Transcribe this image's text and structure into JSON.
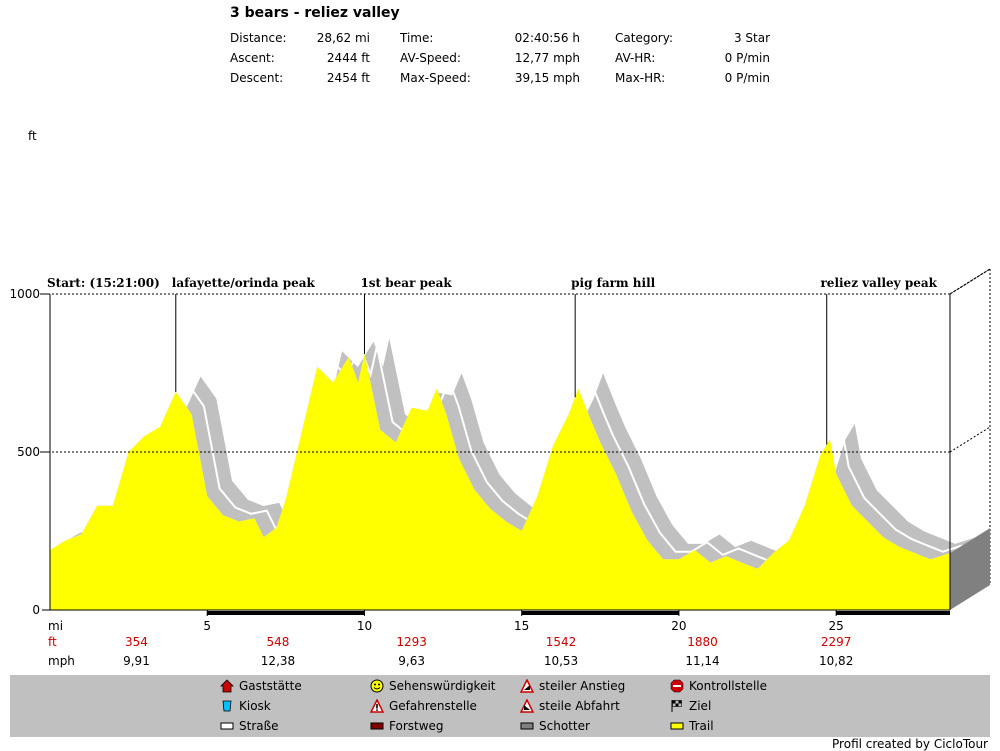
{
  "title": "3 bears - reliez valley",
  "stats": [
    {
      "label": "Distance:",
      "value": "28,62 mi"
    },
    {
      "label": "Ascent:",
      "value": "2444 ft"
    },
    {
      "label": "Descent:",
      "value": "2454 ft"
    },
    {
      "label": "Time:",
      "value": "02:40:56 h"
    },
    {
      "label": "AV-Speed:",
      "value": "12,77 mph"
    },
    {
      "label": "Max-Speed:",
      "value": "39,15 mph"
    },
    {
      "label": "Category:",
      "value": "3 Star"
    },
    {
      "label": "AV-HR:",
      "value": "0 P/min"
    },
    {
      "label": "Max-HR:",
      "value": "0 P/min"
    }
  ],
  "chart_data": {
    "type": "area",
    "ylabel": "ft",
    "xlabel": "mi",
    "xlim": [
      0,
      28.62
    ],
    "ylim": [
      0,
      1000
    ],
    "y_ticks": [
      "0",
      "500",
      "1000"
    ],
    "x_ticks": [
      "5",
      "10",
      "15",
      "20",
      "25"
    ],
    "grid": "dotted lines at 500 and 1000",
    "start_label": "Start: (15:21:00)",
    "waypoints": [
      {
        "name": "lafayette/orinda peak",
        "x": 4.0
      },
      {
        "name": "1st bear peak",
        "x": 10.0
      },
      {
        "name": "pig farm hill",
        "x": 16.7
      },
      {
        "name": "reliez valley peak",
        "x": 24.7
      }
    ],
    "elevation_profile": {
      "x": [
        0,
        0.5,
        1.0,
        1.5,
        2.0,
        2.5,
        3.0,
        3.5,
        4.0,
        4.5,
        5.0,
        5.5,
        6.0,
        6.5,
        6.8,
        7.2,
        7.5,
        8.0,
        8.5,
        9.0,
        9.5,
        9.8,
        10.0,
        10.5,
        11.0,
        11.5,
        12.0,
        12.3,
        12.6,
        13.0,
        13.5,
        14.0,
        14.5,
        15.0,
        15.5,
        16.0,
        16.5,
        16.8,
        17.2,
        17.5,
        18.0,
        18.5,
        19.0,
        19.5,
        20.0,
        20.5,
        21.0,
        21.5,
        22.0,
        22.5,
        23.0,
        23.5,
        24.0,
        24.5,
        24.8,
        25.0,
        25.5,
        26.0,
        26.5,
        27.0,
        27.5,
        28.0,
        28.62
      ],
      "y": [
        190,
        220,
        240,
        330,
        330,
        500,
        550,
        580,
        690,
        620,
        360,
        300,
        280,
        290,
        230,
        260,
        350,
        560,
        770,
        720,
        800,
        720,
        810,
        570,
        530,
        640,
        630,
        700,
        620,
        480,
        380,
        320,
        280,
        250,
        360,
        520,
        620,
        700,
        600,
        530,
        430,
        310,
        220,
        160,
        160,
        190,
        150,
        170,
        150,
        130,
        180,
        220,
        330,
        490,
        540,
        430,
        330,
        280,
        230,
        200,
        180,
        160,
        180
      ]
    },
    "legend_row": {
      "ft": [
        "354",
        "548",
        "1293",
        "1542",
        "1880",
        "2297"
      ],
      "mph": [
        "9,91",
        "12,38",
        "9,63",
        "10,53",
        "11,14",
        "10,82"
      ]
    },
    "colors": {
      "fill": "#ffff00",
      "shadow": "#c0c0c0",
      "background": "#ffffff",
      "side": "#808080"
    }
  },
  "legend": {
    "items": [
      {
        "label": "Gaststätte",
        "icon": "house-icon"
      },
      {
        "label": "Sehenswürdigkeit",
        "icon": "smiley-icon"
      },
      {
        "label": "steiler Anstieg",
        "icon": "warning-icon"
      },
      {
        "label": "Kontrollstelle",
        "icon": "stop-icon"
      },
      {
        "label": "Kiosk",
        "icon": "kiosk-icon"
      },
      {
        "label": "Gefahrenstelle",
        "icon": "hazard-icon"
      },
      {
        "label": "steile Abfahrt",
        "icon": "descent-icon"
      },
      {
        "label": "Ziel",
        "icon": "flag-icon"
      },
      {
        "label": "Straße",
        "icon": "road-swatch"
      },
      {
        "label": "Forstweg",
        "icon": "forest-road-swatch"
      },
      {
        "label": "Schotter",
        "icon": "gravel-swatch"
      },
      {
        "label": "Trail",
        "icon": "trail-swatch"
      }
    ]
  },
  "row_labels": {
    "ft": "ft",
    "mph": "mph"
  },
  "credit": "Profil created by CicloTour"
}
